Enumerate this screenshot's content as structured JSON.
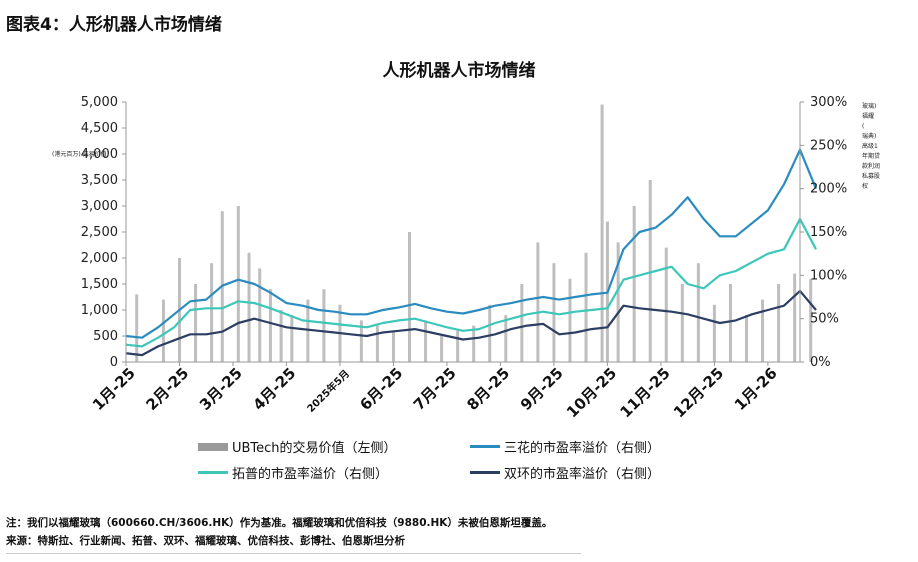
{
  "figure_label": "图表4：人形机器人市场情绪",
  "chart_data": {
    "type": "bar",
    "title": "人形机器人市场情绪",
    "categories": [
      "1月-25",
      "2月-25",
      "3月-25",
      "4月-25",
      "2025年5月",
      "6月-25",
      "7月-25",
      "8月-25",
      "9月-25",
      "10月-25",
      "11月-25",
      "12月-25",
      "1月-26"
    ],
    "y_left": {
      "ticks": [
        "0",
        "500",
        "1,000",
        "1,500",
        "2,000",
        "2,500",
        "3,000",
        "3,500",
        "4,000",
        "4,500",
        "5,000"
      ],
      "ylim": [
        0,
        5000
      ]
    },
    "y_right": {
      "ticks": [
        "0%",
        "50%",
        "100%",
        "150%",
        "200%",
        "250%",
        "300%"
      ],
      "ylim": [
        0,
        300
      ]
    },
    "left_axis_note": "(港元百万) 交易价值",
    "right_axis_note": "玻璃) 福耀 ( 瑞典) 高级1 年期贷 款利润 私募股 权",
    "series": [
      {
        "name": "UBTech的交易价值（左侧）",
        "type": "bar",
        "color": "#a8a8a8",
        "x": [
          0.2,
          0.7,
          1.0,
          1.3,
          1.6,
          1.8,
          2.1,
          2.3,
          2.5,
          2.7,
          2.9,
          3.1,
          3.4,
          3.7,
          4.0,
          4.4,
          4.7,
          5.0,
          5.3,
          5.6,
          5.9,
          6.2,
          6.5,
          6.8,
          7.1,
          7.4,
          7.7,
          8.0,
          8.3,
          8.6,
          8.9,
          9.0,
          9.2,
          9.5,
          9.8,
          10.1,
          10.4,
          10.7,
          11.0,
          11.3,
          11.6,
          11.9,
          12.2,
          12.5,
          12.8
        ],
        "values": [
          1300,
          1200,
          2000,
          1500,
          1900,
          2900,
          3000,
          2100,
          1800,
          1400,
          1000,
          900,
          1200,
          1400,
          1100,
          800,
          700,
          600,
          2500,
          800,
          500,
          600,
          700,
          1100,
          900,
          1500,
          2300,
          1900,
          1600,
          2100,
          4950,
          2700,
          2300,
          3000,
          3500,
          2200,
          1500,
          1900,
          1100,
          1500,
          900,
          1200,
          1500,
          1700,
          1600
        ]
      },
      {
        "name": "三花的市盈率溢价（右侧）",
        "type": "line",
        "color": "#2a8bc0",
        "x": [
          0,
          0.3,
          0.6,
          0.9,
          1.2,
          1.5,
          1.8,
          2.1,
          2.4,
          2.7,
          3.0,
          3.3,
          3.6,
          3.9,
          4.2,
          4.5,
          4.8,
          5.1,
          5.4,
          5.7,
          6.0,
          6.3,
          6.6,
          6.9,
          7.2,
          7.5,
          7.8,
          8.1,
          8.4,
          8.7,
          9.0,
          9.3,
          9.6,
          9.9,
          10.2,
          10.5,
          10.8,
          11.1,
          11.4,
          11.7,
          12.0,
          12.3,
          12.6,
          12.9
        ],
        "values": [
          30,
          28,
          40,
          55,
          70,
          72,
          88,
          95,
          90,
          80,
          68,
          65,
          60,
          58,
          55,
          55,
          60,
          63,
          67,
          62,
          58,
          56,
          60,
          65,
          68,
          72,
          75,
          72,
          75,
          78,
          80,
          130,
          150,
          155,
          170,
          190,
          165,
          145,
          145,
          160,
          175,
          205,
          245,
          200
        ]
      },
      {
        "name": "拓普的市盈率溢价（右侧）",
        "type": "line",
        "color": "#3cc7b8",
        "x": [
          0,
          0.3,
          0.6,
          0.9,
          1.2,
          1.5,
          1.8,
          2.1,
          2.4,
          2.7,
          3.0,
          3.3,
          3.6,
          3.9,
          4.2,
          4.5,
          4.8,
          5.1,
          5.4,
          5.7,
          6.0,
          6.3,
          6.6,
          6.9,
          7.2,
          7.5,
          7.8,
          8.1,
          8.4,
          8.7,
          9.0,
          9.3,
          9.6,
          9.9,
          10.2,
          10.5,
          10.8,
          11.1,
          11.4,
          11.7,
          12.0,
          12.3,
          12.6,
          12.9
        ],
        "values": [
          20,
          18,
          28,
          40,
          60,
          62,
          62,
          70,
          68,
          62,
          55,
          48,
          46,
          44,
          42,
          40,
          45,
          48,
          50,
          45,
          40,
          36,
          38,
          45,
          50,
          55,
          58,
          55,
          58,
          60,
          62,
          95,
          100,
          105,
          110,
          90,
          85,
          100,
          105,
          115,
          125,
          130,
          165,
          130
        ]
      },
      {
        "name": "双环的市盈率溢价（右侧）",
        "type": "line",
        "color": "#2d3e63",
        "x": [
          0,
          0.3,
          0.6,
          0.9,
          1.2,
          1.5,
          1.8,
          2.1,
          2.4,
          2.7,
          3.0,
          3.3,
          3.6,
          3.9,
          4.2,
          4.5,
          4.8,
          5.1,
          5.4,
          5.7,
          6.0,
          6.3,
          6.6,
          6.9,
          7.2,
          7.5,
          7.8,
          8.1,
          8.4,
          8.7,
          9.0,
          9.3,
          9.6,
          9.9,
          10.2,
          10.5,
          10.8,
          11.1,
          11.4,
          11.7,
          12.0,
          12.3,
          12.6,
          12.9
        ],
        "values": [
          10,
          8,
          18,
          25,
          32,
          32,
          35,
          45,
          50,
          45,
          40,
          38,
          36,
          34,
          32,
          30,
          34,
          36,
          38,
          34,
          30,
          26,
          28,
          32,
          38,
          42,
          44,
          32,
          34,
          38,
          40,
          65,
          62,
          60,
          58,
          55,
          50,
          45,
          48,
          55,
          60,
          65,
          82,
          60
        ]
      }
    ]
  },
  "legend": {
    "bar": "UBTech的交易价值（左侧）",
    "sanhua": "三花的市盈率溢价（右侧）",
    "tuopu": "拓普的市盈率溢价（右侧）",
    "shuanghuan": "双环的市盈率溢价（右侧）"
  },
  "notes": {
    "line1": "注：我们以福耀玻璃（600660.CH/3606.HK）作为基准。福耀玻璃和优倍科技（9880.HK）未被伯恩斯坦覆盖。",
    "line2": "来源：特斯拉、行业新闻、拓普、双环、福耀玻璃、优倍科技、彭博社、伯恩斯坦分析"
  }
}
